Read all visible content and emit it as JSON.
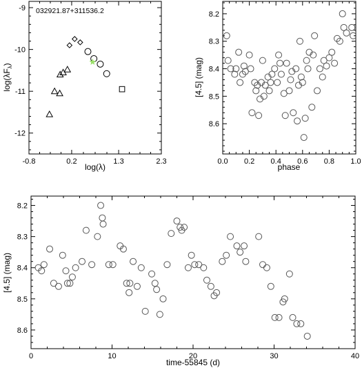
{
  "chart_data": [
    {
      "id": "sed",
      "type": "scatter",
      "title": "032921.87+311536.2",
      "xlabel": "log(λ)",
      "ylabel": "log(λF",
      "ylabel_sub": "λ",
      "ylabel_close": ")",
      "xlim": [
        -0.8,
        2.3
      ],
      "ylim": [
        -12.5,
        -8.85
      ],
      "ylim_inverted": false,
      "xticks": [
        -0.8,
        0.2,
        1.3,
        2.3
      ],
      "xtick_labels": [
        "-0.8",
        "0.2",
        "1.3",
        "2.3"
      ],
      "yticks": [
        -12,
        -11,
        -10,
        -9
      ],
      "ytick_labels": [
        "-12",
        "-11",
        "-10",
        "-9"
      ],
      "series": [
        {
          "marker": "triangle",
          "points": [
            [
              -0.32,
              -11.55
            ],
            [
              -0.2,
              -11.0
            ],
            [
              -0.07,
              -10.6
            ],
            [
              0.0,
              -10.55
            ],
            [
              0.1,
              -10.48
            ],
            [
              -0.08,
              -11.05
            ]
          ]
        },
        {
          "marker": "diamond",
          "points": [
            [
              0.15,
              -9.9
            ],
            [
              0.27,
              -9.75
            ],
            [
              0.4,
              -9.83
            ]
          ]
        },
        {
          "marker": "circle",
          "points": [
            [
              0.58,
              -10.05
            ],
            [
              0.72,
              -10.22
            ],
            [
              0.87,
              -10.35
            ],
            [
              1.02,
              -10.58
            ]
          ]
        },
        {
          "marker": "square",
          "points": [
            [
              1.38,
              -10.95
            ]
          ]
        },
        {
          "marker": "star",
          "color": "#9BE06A",
          "points": [
            [
              0.69,
              -10.3
            ]
          ]
        }
      ]
    },
    {
      "id": "phase",
      "type": "scatter",
      "xlabel": "phase",
      "ylabel": "[4.5] (mag)",
      "xlim": [
        0.0,
        1.0
      ],
      "ylim": [
        8.71,
        8.155
      ],
      "ylim_inverted": true,
      "xticks": [
        0.0,
        0.2,
        0.4,
        0.6,
        0.8,
        1.0
      ],
      "xtick_labels": [
        "0.0",
        "0.2",
        "0.4",
        "0.6",
        "0.8",
        "1.0"
      ],
      "yticks": [
        8.2,
        8.3,
        8.4,
        8.5,
        8.6
      ],
      "ytick_labels": [
        "8.2",
        "8.3",
        "8.4",
        "8.5",
        "8.6"
      ],
      "series": [
        {
          "marker": "circle",
          "points": [
            [
              0.03,
              8.28
            ],
            [
              0.04,
              8.37
            ],
            [
              0.06,
              8.4
            ],
            [
              0.09,
              8.42
            ],
            [
              0.1,
              8.4
            ],
            [
              0.12,
              8.34
            ],
            [
              0.13,
              8.45
            ],
            [
              0.15,
              8.42
            ],
            [
              0.16,
              8.39
            ],
            [
              0.17,
              8.41
            ],
            [
              0.2,
              8.35
            ],
            [
              0.21,
              8.4
            ],
            [
              0.22,
              8.56
            ],
            [
              0.24,
              8.45
            ],
            [
              0.25,
              8.48
            ],
            [
              0.26,
              8.46
            ],
            [
              0.27,
              8.57
            ],
            [
              0.28,
              8.51
            ],
            [
              0.29,
              8.45
            ],
            [
              0.3,
              8.37
            ],
            [
              0.31,
              8.5
            ],
            [
              0.32,
              8.46
            ],
            [
              0.34,
              8.43
            ],
            [
              0.35,
              8.48
            ],
            [
              0.36,
              8.45
            ],
            [
              0.37,
              8.42
            ],
            [
              0.39,
              8.4
            ],
            [
              0.41,
              8.45
            ],
            [
              0.42,
              8.35
            ],
            [
              0.43,
              8.38
            ],
            [
              0.44,
              8.42
            ],
            [
              0.46,
              8.49
            ],
            [
              0.47,
              8.57
            ],
            [
              0.48,
              8.38
            ],
            [
              0.5,
              8.48
            ],
            [
              0.51,
              8.44
            ],
            [
              0.52,
              8.41
            ],
            [
              0.53,
              8.56
            ],
            [
              0.55,
              8.4
            ],
            [
              0.56,
              8.59
            ],
            [
              0.57,
              8.46
            ],
            [
              0.58,
              8.3
            ],
            [
              0.59,
              8.43
            ],
            [
              0.6,
              8.45
            ],
            [
              0.61,
              8.65
            ],
            [
              0.62,
              8.58
            ],
            [
              0.63,
              8.37
            ],
            [
              0.64,
              8.4
            ],
            [
              0.65,
              8.34
            ],
            [
              0.67,
              8.54
            ],
            [
              0.68,
              8.35
            ],
            [
              0.69,
              8.28
            ],
            [
              0.71,
              8.48
            ],
            [
              0.73,
              8.4
            ],
            [
              0.75,
              8.43
            ],
            [
              0.76,
              8.37
            ],
            [
              0.78,
              8.39
            ],
            [
              0.8,
              8.36
            ],
            [
              0.82,
              8.34
            ],
            [
              0.84,
              8.38
            ],
            [
              0.86,
              8.29
            ],
            [
              0.88,
              8.3
            ],
            [
              0.9,
              8.2
            ],
            [
              0.91,
              8.25
            ],
            [
              0.93,
              8.27
            ],
            [
              0.97,
              8.25
            ],
            [
              0.98,
              8.28
            ]
          ]
        }
      ]
    },
    {
      "id": "time",
      "type": "scatter",
      "xlabel": "time-55845 (d)",
      "ylabel": "[4.5] (mag)",
      "xlim": [
        0,
        40
      ],
      "ylim": [
        8.66,
        8.17
      ],
      "ylim_inverted": true,
      "xticks": [
        0,
        10,
        20,
        30,
        40
      ],
      "xtick_labels": [
        "0",
        "10",
        "20",
        "30",
        "40"
      ],
      "yticks": [
        8.2,
        8.3,
        8.4,
        8.5,
        8.6
      ],
      "ytick_labels": [
        "8.2",
        "8.3",
        "8.4",
        "8.5",
        "8.6"
      ],
      "series": [
        {
          "marker": "circle",
          "points": [
            [
              0.9,
              8.4
            ],
            [
              1.3,
              8.41
            ],
            [
              1.6,
              8.39
            ],
            [
              2.3,
              8.34
            ],
            [
              2.8,
              8.45
            ],
            [
              3.4,
              8.46
            ],
            [
              3.9,
              8.36
            ],
            [
              4.3,
              8.41
            ],
            [
              4.5,
              8.45
            ],
            [
              4.8,
              8.45
            ],
            [
              5.1,
              8.43
            ],
            [
              5.5,
              8.4
            ],
            [
              6.3,
              8.38
            ],
            [
              6.8,
              8.28
            ],
            [
              7.5,
              8.39
            ],
            [
              8.2,
              8.3
            ],
            [
              8.6,
              8.2
            ],
            [
              8.8,
              8.24
            ],
            [
              8.9,
              8.26
            ],
            [
              9.6,
              8.39
            ],
            [
              10.1,
              8.39
            ],
            [
              11.0,
              8.33
            ],
            [
              11.4,
              8.34
            ],
            [
              11.8,
              8.45
            ],
            [
              12.1,
              8.48
            ],
            [
              12.2,
              8.45
            ],
            [
              12.6,
              8.38
            ],
            [
              13.1,
              8.46
            ],
            [
              13.6,
              8.4
            ],
            [
              14.1,
              8.54
            ],
            [
              14.9,
              8.42
            ],
            [
              15.3,
              8.45
            ],
            [
              15.5,
              8.47
            ],
            [
              15.9,
              8.55
            ],
            [
              16.3,
              8.5
            ],
            [
              16.8,
              8.39
            ],
            [
              17.3,
              8.29
            ],
            [
              18.0,
              8.25
            ],
            [
              18.4,
              8.27
            ],
            [
              18.6,
              8.28
            ],
            [
              18.9,
              8.27
            ],
            [
              19.4,
              8.4
            ],
            [
              19.8,
              8.36
            ],
            [
              20.2,
              8.39
            ],
            [
              20.7,
              8.39
            ],
            [
              21.3,
              8.4
            ],
            [
              21.7,
              8.44
            ],
            [
              22.2,
              8.46
            ],
            [
              22.6,
              8.49
            ],
            [
              22.9,
              8.48
            ],
            [
              23.6,
              8.38
            ],
            [
              24.1,
              8.36
            ],
            [
              24.6,
              8.3
            ],
            [
              25.4,
              8.33
            ],
            [
              25.8,
              8.35
            ],
            [
              26.3,
              8.33
            ],
            [
              26.5,
              8.38
            ],
            [
              28.1,
              8.3
            ],
            [
              28.6,
              8.39
            ],
            [
              29.1,
              8.4
            ],
            [
              29.6,
              8.46
            ],
            [
              30.1,
              8.56
            ],
            [
              30.6,
              8.56
            ],
            [
              31.1,
              8.51
            ],
            [
              31.3,
              8.5
            ],
            [
              31.9,
              8.42
            ],
            [
              32.3,
              8.56
            ],
            [
              32.8,
              8.58
            ],
            [
              33.3,
              8.58
            ],
            [
              34.1,
              8.62
            ]
          ]
        }
      ]
    }
  ]
}
